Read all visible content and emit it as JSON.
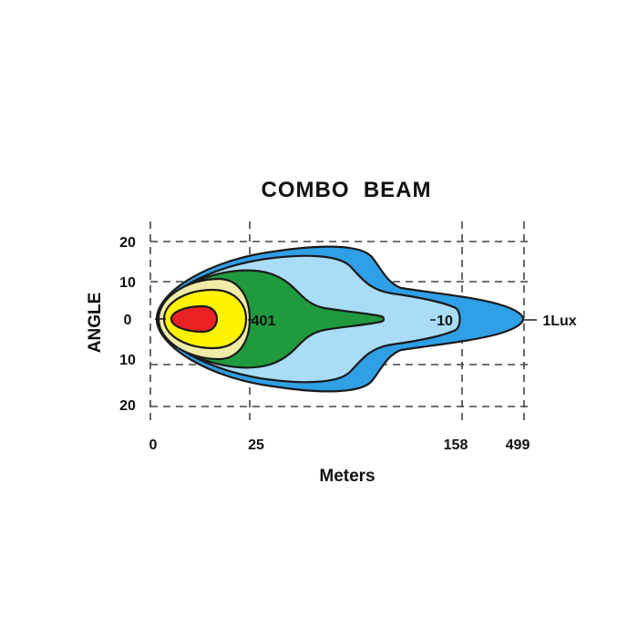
{
  "chart_data": {
    "type": "heatmap",
    "title": "COMBO  BEAM",
    "xlabel": "Meters",
    "ylabel": "ANGLE",
    "x_ticks": [
      "0",
      "25",
      "158",
      "499"
    ],
    "y_ticks": [
      "20",
      "10",
      "0",
      "10",
      "20"
    ],
    "grid": true,
    "contours": [
      {
        "level": "1Lux",
        "color": "#2f9fe6"
      },
      {
        "level": "10",
        "color": "#a9dcf6"
      },
      {
        "level": "401",
        "color": "#1f9a3c"
      },
      {
        "level": "",
        "color": "#f0eca8"
      },
      {
        "level": "",
        "color": "#fff200"
      },
      {
        "level": "",
        "color": "#ea2224"
      }
    ]
  }
}
